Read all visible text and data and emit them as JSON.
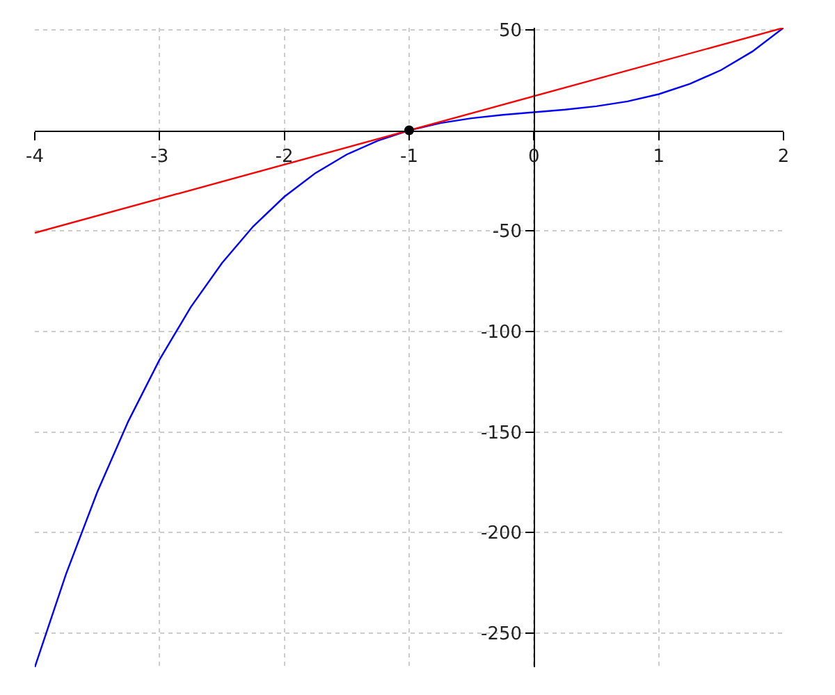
{
  "chart_data": {
    "type": "line",
    "xlim": [
      -4,
      2
    ],
    "ylim": [
      -267,
      51
    ],
    "xticks": [
      -4,
      -3,
      -2,
      -1,
      0,
      1,
      2
    ],
    "yticks": [
      50,
      -50,
      -100,
      -150,
      -200,
      -250
    ],
    "grid": true,
    "line_style": "solid",
    "series": [
      {
        "color": "#0000ff",
        "x": [
          -4,
          -3.75,
          -3.5,
          -3.25,
          -3,
          -2.75,
          -2.5,
          -2.25,
          -2,
          -1.75,
          -1.5,
          -1.25,
          -1,
          -0.75,
          -0.5,
          -0.25,
          0,
          0.25,
          0.5,
          0.75,
          1,
          1.25,
          1.5,
          1.75,
          2
        ],
        "values": [
          -267,
          -220.7,
          -180,
          -144.6,
          -114,
          -87.9,
          -66,
          -47.8,
          -33,
          -21.2,
          -12,
          -5.1,
          0,
          3.6,
          6,
          7.7,
          9,
          10.3,
          12,
          14.4,
          18,
          23.1,
          30,
          39.2,
          51
        ]
      },
      {
        "color": "#ff0000",
        "x": [
          -4,
          2
        ],
        "values": [
          -51,
          51
        ]
      },
      {
        "type": "scatter",
        "marker": "circle",
        "color": "#000000",
        "x": [
          -1
        ],
        "values": [
          0
        ]
      }
    ]
  }
}
